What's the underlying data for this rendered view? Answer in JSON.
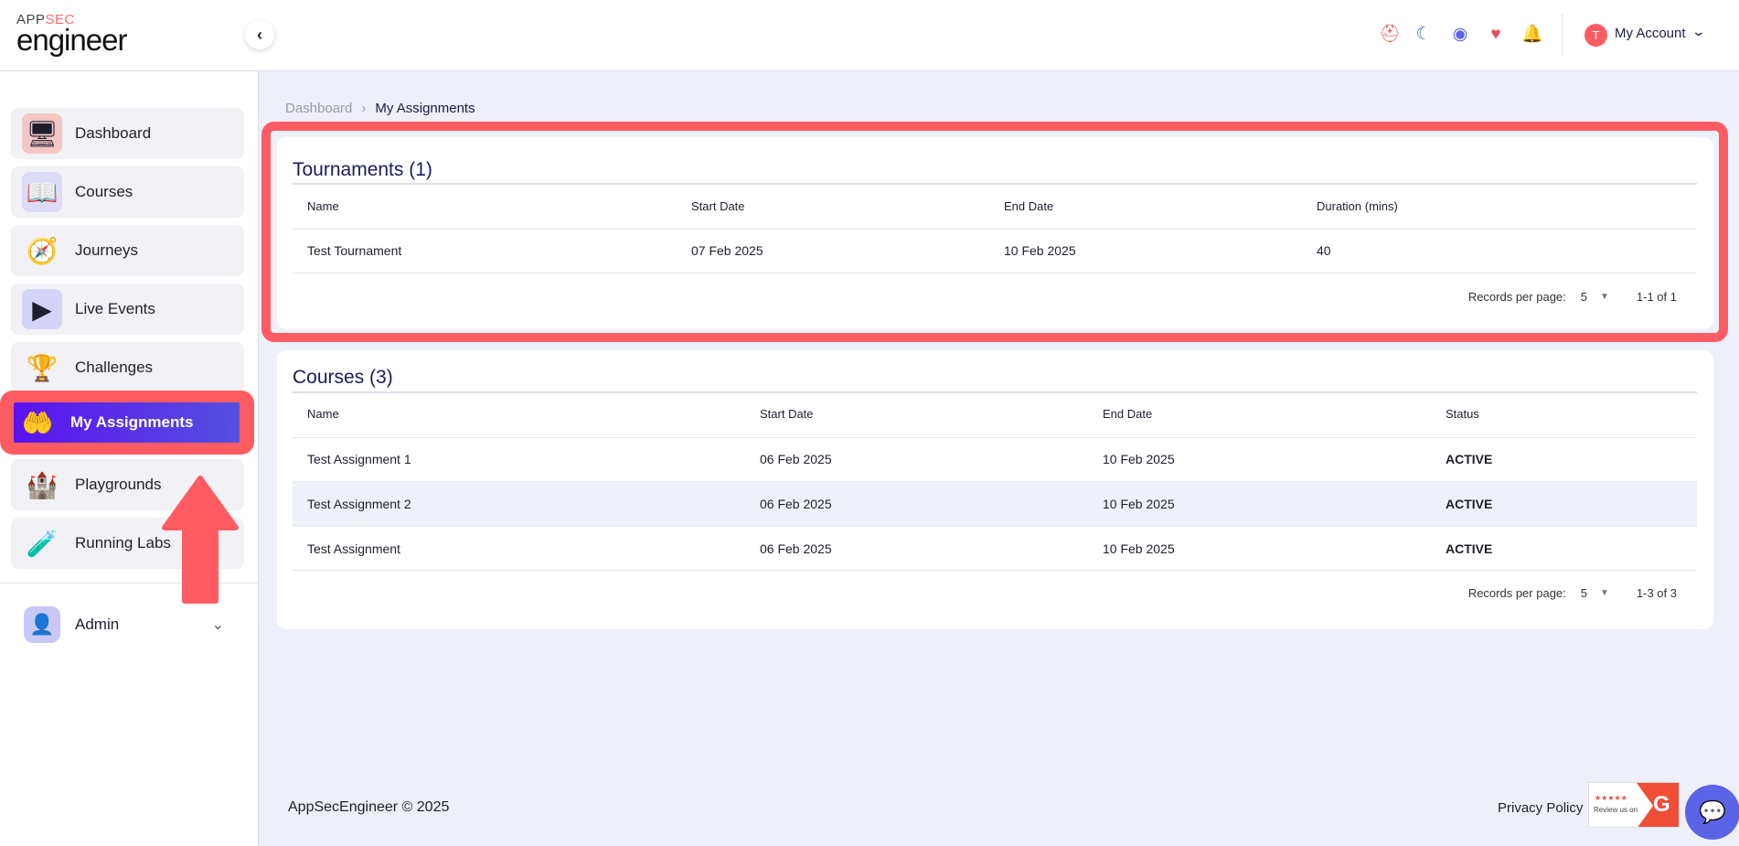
{
  "logo": {
    "top": "APP",
    "top_accent": "SEC",
    "bottom": "engineer"
  },
  "header": {
    "icons": [
      "lifebuoy-icon",
      "moon-icon",
      "discord-icon",
      "heart-icon",
      "bell-icon"
    ],
    "avatar_letter": "T",
    "account_label": "My Account"
  },
  "sidebar": {
    "items": [
      {
        "label": "Dashboard",
        "icon": "dashboard-icon"
      },
      {
        "label": "Courses",
        "icon": "courses-icon"
      },
      {
        "label": "Journeys",
        "icon": "compass-icon"
      },
      {
        "label": "Live Events",
        "icon": "live-events-icon"
      },
      {
        "label": "Challenges",
        "icon": "trophy-icon"
      },
      {
        "label": "My Assignments",
        "icon": "assignments-icon",
        "active": true
      },
      {
        "label": "Playgrounds",
        "icon": "playground-icon"
      },
      {
        "label": "Running Labs",
        "icon": "lab-icon"
      }
    ],
    "admin": "Admin"
  },
  "breadcrumb": {
    "parent": "Dashboard",
    "current": "My Assignments"
  },
  "tournaments": {
    "title": "Tournaments (1)",
    "columns": [
      "Name",
      "Start Date",
      "End Date",
      "Duration (mins)"
    ],
    "rows": [
      [
        "Test Tournament",
        "07 Feb 2025",
        "10 Feb 2025",
        "40"
      ]
    ],
    "records_label": "Records per page:",
    "per_page": "5",
    "range": "1-1 of 1"
  },
  "courses": {
    "title": "Courses (3)",
    "columns": [
      "Name",
      "Start Date",
      "End Date",
      "Status"
    ],
    "rows": [
      [
        "Test Assignment 1",
        "06 Feb 2025",
        "10 Feb 2025",
        "ACTIVE"
      ],
      [
        "Test Assignment 2",
        "06 Feb 2025",
        "10 Feb 2025",
        "ACTIVE"
      ],
      [
        "Test Assignment",
        "06 Feb 2025",
        "10 Feb 2025",
        "ACTIVE"
      ]
    ],
    "records_label": "Records per page:",
    "per_page": "5",
    "range": "1-3 of 3"
  },
  "footer": {
    "copyright": "AppSecEngineer © 2025",
    "privacy": "Privacy Policy",
    "g2_stars": "★★★★★",
    "g2_text": "Review us on"
  },
  "colors": {
    "accent": "#5a12f0",
    "highlight": "#ff5b63",
    "background": "#edf0f8"
  }
}
